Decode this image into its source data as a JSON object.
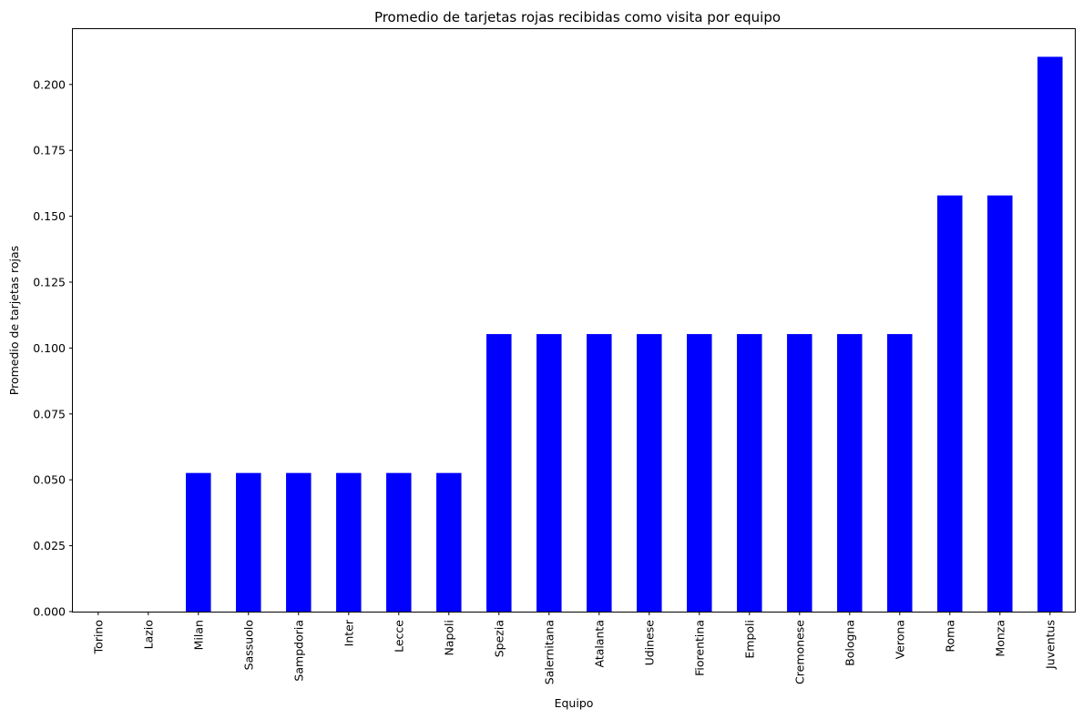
{
  "chart_data": {
    "type": "bar",
    "title": "Promedio de tarjetas rojas recibidas como visita por equipo",
    "xlabel": "Equipo",
    "ylabel": "Promedio de tarjetas rojas",
    "categories": [
      "Torino",
      "Lazio",
      "Milan",
      "Sassuolo",
      "Sampdoria",
      "Inter",
      "Lecce",
      "Napoli",
      "Spezia",
      "Salernitana",
      "Atalanta",
      "Udinese",
      "Fiorentina",
      "Empoli",
      "Cremonese",
      "Bologna",
      "Verona",
      "Roma",
      "Monza",
      "Juventus"
    ],
    "values": [
      0,
      0,
      0.0526,
      0.0526,
      0.0526,
      0.0526,
      0.0526,
      0.0526,
      0.1053,
      0.1053,
      0.1053,
      0.1053,
      0.1053,
      0.1053,
      0.1053,
      0.1053,
      0.1053,
      0.1579,
      0.1579,
      0.2105
    ],
    "ylim": [
      0,
      0.221
    ],
    "yticks": [
      "0.000",
      "0.025",
      "0.050",
      "0.075",
      "0.100",
      "0.125",
      "0.150",
      "0.175",
      "0.200"
    ],
    "bar_color": "#0000ff",
    "grid": false,
    "legend": false
  }
}
